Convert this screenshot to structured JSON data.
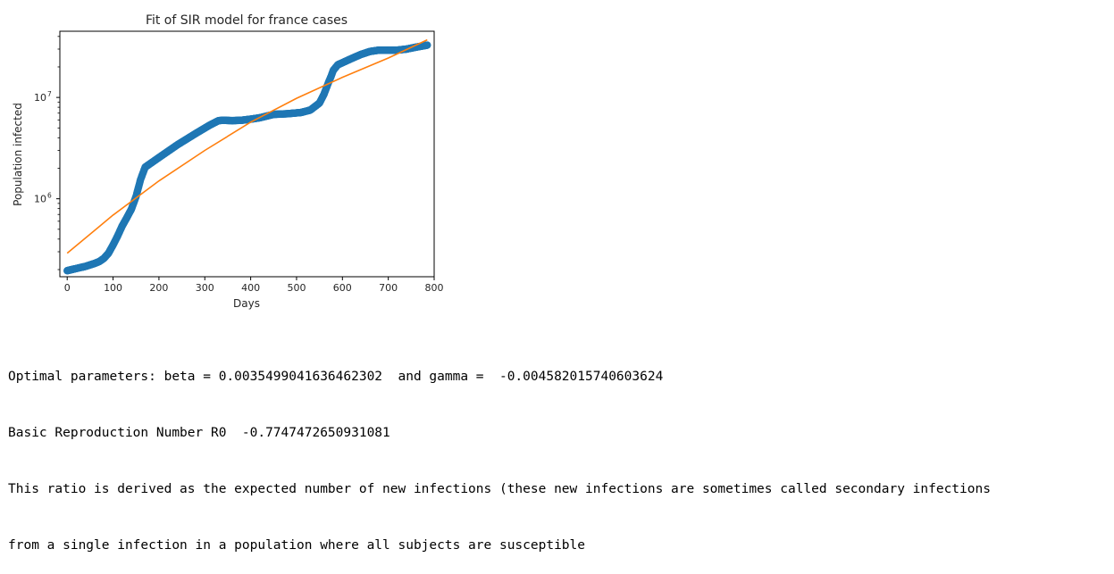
{
  "chart_data": {
    "type": "scatter",
    "title": "Fit of SIR model for france cases",
    "xlabel": "Days",
    "ylabel": "Population infected",
    "xlim": [
      -16,
      800
    ],
    "ylim": [
      170000,
      45000000
    ],
    "yscale": "log",
    "grid": false,
    "x_ticks": [
      0,
      100,
      200,
      300,
      400,
      500,
      600,
      700,
      800
    ],
    "x_tick_labels": [
      "0",
      "100",
      "200",
      "300",
      "400",
      "500",
      "600",
      "700",
      "800"
    ],
    "y_ticks": [
      1000000,
      10000000
    ],
    "y_tick_labels": [
      {
        "base": "10",
        "exp": "6"
      },
      {
        "base": "10",
        "exp": "7"
      }
    ],
    "colors": {
      "observed": "#1f77b4",
      "fit": "#ff7f0e"
    },
    "series": [
      {
        "kind": "scatter",
        "x": [
          0,
          20,
          40,
          60,
          70,
          80,
          90,
          100,
          110,
          120,
          130,
          140,
          150,
          160,
          170,
          200,
          240,
          280,
          310,
          330,
          340,
          360,
          380,
          400,
          420,
          450,
          480,
          510,
          530,
          550,
          560,
          570,
          575,
          580,
          590,
          600,
          620,
          640,
          660,
          680,
          700,
          720,
          740,
          760,
          785
        ],
        "y": [
          195000,
          205000,
          215000,
          230000,
          240000,
          258000,
          290000,
          350000,
          430000,
          540000,
          650000,
          790000,
          1050000,
          1550000,
          2050000,
          2550000,
          3400000,
          4400000,
          5300000,
          5900000,
          5950000,
          5900000,
          5950000,
          6100000,
          6300000,
          6800000,
          6900000,
          7100000,
          7500000,
          8800000,
          10800000,
          14200000,
          16000000,
          18500000,
          21000000,
          22000000,
          24200000,
          26500000,
          28400000,
          29300000,
          29300000,
          29300000,
          30000000,
          31300000,
          32800000
        ]
      },
      {
        "kind": "line",
        "x": [
          0,
          100,
          200,
          300,
          400,
          500,
          600,
          700,
          785
        ],
        "y": [
          290000,
          690000,
          1500000,
          3000000,
          5700000,
          9800000,
          15800000,
          24500000,
          37000000
        ]
      }
    ]
  },
  "output": {
    "line1": "Optimal parameters: beta = 0.0035499041636462302  and gamma =  -0.004582015740603624",
    "line2": "Basic Reproduction Number R0  -0.7747472650931081",
    "line3": "This ratio is derived as the expected number of new infections (these new infections are sometimes called secondary infections",
    "line4": "from a single infection in a population where all subjects are susceptible"
  }
}
